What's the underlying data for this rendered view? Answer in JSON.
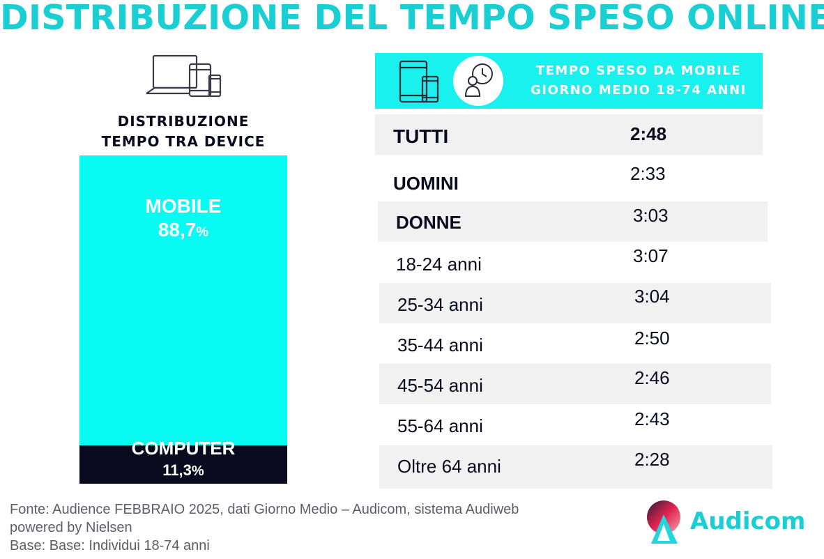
{
  "title": "DISTRIBUZIONE DEL TEMPO SPESO ONLINE",
  "left_panel": {
    "heading_line1": "DISTRIBUZIONE",
    "heading_line2": "TEMPO TRA DEVICE",
    "icon": "laptop-tablet-phone-icon"
  },
  "table": {
    "header_line1": "TEMPO SPESO DA MOBILE",
    "header_line2": "GIORNO MEDIO 18-74 ANNI",
    "icons": [
      "tablet-phone-icon",
      "person-clock-icon"
    ]
  },
  "chart_data": [
    {
      "type": "bar",
      "stacked": true,
      "series": [
        {
          "name": "MOBILE",
          "value": 88.7,
          "label": "88,7",
          "unit": "%",
          "color": "#07fbf2"
        },
        {
          "name": "COMPUTER",
          "value": 11.3,
          "label": "11,3",
          "unit": "%",
          "color": "#0a0a1e"
        }
      ],
      "ylim": [
        0,
        100
      ]
    },
    {
      "type": "table",
      "rows": [
        {
          "label": "TUTTI",
          "value": "2:48",
          "bold": true
        },
        {
          "label": "UOMINI",
          "value": "2:33",
          "bold": true
        },
        {
          "label": "DONNE",
          "value": "3:03",
          "bold": true
        },
        {
          "label": "18-24 anni",
          "value": "3:07",
          "bold": false
        },
        {
          "label": "25-34 anni",
          "value": "3:04",
          "bold": false
        },
        {
          "label": "35-44 anni",
          "value": "2:50",
          "bold": false
        },
        {
          "label": "45-54 anni",
          "value": "2:46",
          "bold": false
        },
        {
          "label": "55-64 anni",
          "value": "2:43",
          "bold": false
        },
        {
          "label": "Oltre 64 anni",
          "value": "2:28",
          "bold": false
        }
      ]
    }
  ],
  "footer": {
    "line1": "Fonte: Audience FEBBRAIO 2025, dati Giorno Medio – Audicom, sistema Audiweb",
    "line2": "powered by Nielsen",
    "line3": "Base:  Base:  Individui 18-74 anni"
  },
  "logo": {
    "text": "Audicom",
    "color": "#19cfd3"
  },
  "colors": {
    "accent": "#19cfd3",
    "header_bg": "#19f1ef",
    "row_shade": "#f1f1f1"
  }
}
